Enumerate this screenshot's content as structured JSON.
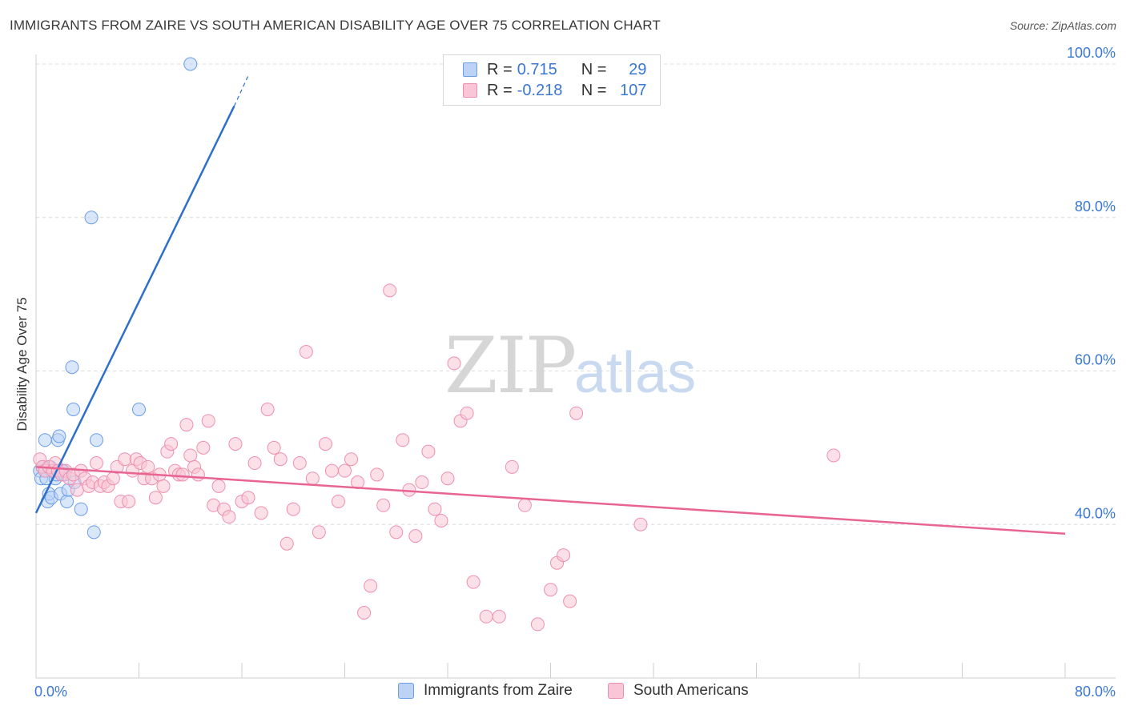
{
  "title": "IMMIGRANTS FROM ZAIRE VS SOUTH AMERICAN DISABILITY AGE OVER 75 CORRELATION CHART",
  "source": "Source: ZipAtlas.com",
  "watermark": {
    "zip": "ZIP",
    "atlas": "atlas"
  },
  "stats": {
    "series1": {
      "r_label": "R =",
      "r_value": "0.715",
      "n_label": "N =",
      "n_value": "29",
      "color": "#6a9ee8",
      "fill": "#bcd3f5"
    },
    "series2": {
      "r_label": "R =",
      "r_value": "-0.218",
      "n_label": "N =",
      "n_value": "107",
      "color": "#ef8fb0",
      "fill": "#f8c6d6"
    }
  },
  "legend": {
    "item1": "Immigrants from Zaire",
    "item2": "South Americans"
  },
  "chart_data": {
    "type": "scatter",
    "title": "IMMIGRANTS FROM ZAIRE VS SOUTH AMERICAN DISABILITY AGE OVER 75 CORRELATION CHART",
    "xlabel": "",
    "ylabel": "Disability Age Over 75",
    "xlim": [
      0,
      80
    ],
    "ylim": [
      20,
      100
    ],
    "x_tick_labels": [
      "0.0%",
      "80.0%"
    ],
    "y_ticks": [
      40,
      60,
      80,
      100
    ],
    "y_tick_labels": [
      "40.0%",
      "60.0%",
      "80.0%",
      "100.0%"
    ],
    "grid": true,
    "series": [
      {
        "name": "Immigrants from Zaire",
        "color": "#6a9ee8",
        "fill": "#bcd3f5",
        "trend": {
          "x": [
            0,
            15.4
          ],
          "y": [
            41.5,
            94.5
          ],
          "dash_to": [
            16.5,
            98.5
          ],
          "color": "#2e6fcc"
        },
        "points": [
          [
            0.3,
            47
          ],
          [
            0.4,
            46
          ],
          [
            0.5,
            47.5
          ],
          [
            0.7,
            51
          ],
          [
            0.8,
            46
          ],
          [
            0.9,
            43
          ],
          [
            1.0,
            44
          ],
          [
            1.1,
            47.5
          ],
          [
            1.2,
            43.5
          ],
          [
            1.4,
            47
          ],
          [
            1.5,
            46
          ],
          [
            1.6,
            46.5
          ],
          [
            1.7,
            51
          ],
          [
            1.8,
            51.5
          ],
          [
            1.9,
            44
          ],
          [
            2.0,
            47
          ],
          [
            2.1,
            47
          ],
          [
            2.2,
            46.5
          ],
          [
            2.4,
            43
          ],
          [
            2.5,
            44.5
          ],
          [
            2.8,
            60.5
          ],
          [
            2.9,
            55
          ],
          [
            3.0,
            45.5
          ],
          [
            3.5,
            42
          ],
          [
            4.3,
            80
          ],
          [
            4.5,
            39
          ],
          [
            4.7,
            51
          ],
          [
            8.0,
            55
          ],
          [
            12.0,
            100
          ]
        ]
      },
      {
        "name": "South Americans",
        "color": "#ef8fb0",
        "fill": "#f8c6d6",
        "trend": {
          "x": [
            0,
            80
          ],
          "y": [
            47.5,
            38.8
          ],
          "color": "#e86592"
        },
        "points": [
          [
            0.3,
            48.5
          ],
          [
            0.5,
            47.5
          ],
          [
            0.7,
            47
          ],
          [
            1.0,
            47.5
          ],
          [
            1.3,
            47
          ],
          [
            1.5,
            48
          ],
          [
            1.7,
            47
          ],
          [
            2.0,
            46.5
          ],
          [
            2.3,
            47
          ],
          [
            2.6,
            46
          ],
          [
            2.9,
            46.5
          ],
          [
            3.2,
            44.5
          ],
          [
            3.5,
            47
          ],
          [
            3.8,
            46
          ],
          [
            4.1,
            45
          ],
          [
            4.4,
            45.5
          ],
          [
            4.7,
            48
          ],
          [
            5.0,
            45
          ],
          [
            5.3,
            45.5
          ],
          [
            5.6,
            45
          ],
          [
            6.0,
            46
          ],
          [
            6.3,
            47.5
          ],
          [
            6.6,
            43
          ],
          [
            6.9,
            48.5
          ],
          [
            7.2,
            43
          ],
          [
            7.5,
            47
          ],
          [
            7.8,
            48.5
          ],
          [
            8.1,
            48
          ],
          [
            8.4,
            46
          ],
          [
            8.7,
            47.5
          ],
          [
            9.0,
            46
          ],
          [
            9.3,
            43.5
          ],
          [
            9.6,
            46.5
          ],
          [
            9.9,
            45
          ],
          [
            10.2,
            49.5
          ],
          [
            10.5,
            50.5
          ],
          [
            10.8,
            47
          ],
          [
            11.1,
            46.5
          ],
          [
            11.4,
            46.5
          ],
          [
            11.7,
            53
          ],
          [
            12.0,
            49
          ],
          [
            12.3,
            47.5
          ],
          [
            12.6,
            46.5
          ],
          [
            13.0,
            50
          ],
          [
            13.4,
            53.5
          ],
          [
            13.8,
            42.5
          ],
          [
            14.2,
            45
          ],
          [
            14.6,
            42
          ],
          [
            15.0,
            41
          ],
          [
            15.5,
            50.5
          ],
          [
            16.0,
            43
          ],
          [
            16.5,
            43.5
          ],
          [
            17.0,
            48
          ],
          [
            17.5,
            41.5
          ],
          [
            18.0,
            55
          ],
          [
            18.5,
            50
          ],
          [
            19.0,
            48.5
          ],
          [
            19.5,
            37.5
          ],
          [
            20.0,
            42
          ],
          [
            20.5,
            48
          ],
          [
            21.0,
            62.5
          ],
          [
            21.5,
            46
          ],
          [
            22.0,
            39
          ],
          [
            22.5,
            50.5
          ],
          [
            23.0,
            47
          ],
          [
            23.5,
            43
          ],
          [
            24.0,
            47
          ],
          [
            24.5,
            48.5
          ],
          [
            25.0,
            45.5
          ],
          [
            25.5,
            28.5
          ],
          [
            26.0,
            32
          ],
          [
            26.5,
            46.5
          ],
          [
            27.0,
            42.5
          ],
          [
            27.5,
            70.5
          ],
          [
            28.0,
            39
          ],
          [
            28.5,
            51
          ],
          [
            29.0,
            44.5
          ],
          [
            29.5,
            38.5
          ],
          [
            30.0,
            45.5
          ],
          [
            30.5,
            49.5
          ],
          [
            31.0,
            42
          ],
          [
            31.5,
            40.5
          ],
          [
            32.0,
            46
          ],
          [
            32.5,
            61
          ],
          [
            33.0,
            53.5
          ],
          [
            33.5,
            54.5
          ],
          [
            34.0,
            32.5
          ],
          [
            35.0,
            28
          ],
          [
            36.0,
            28
          ],
          [
            37.0,
            47.5
          ],
          [
            38.0,
            42.5
          ],
          [
            39.0,
            27
          ],
          [
            40.0,
            31.5
          ],
          [
            40.5,
            35
          ],
          [
            41.0,
            36
          ],
          [
            41.5,
            30
          ],
          [
            42.0,
            54.5
          ],
          [
            47.0,
            40
          ],
          [
            62.0,
            49
          ]
        ]
      }
    ]
  }
}
